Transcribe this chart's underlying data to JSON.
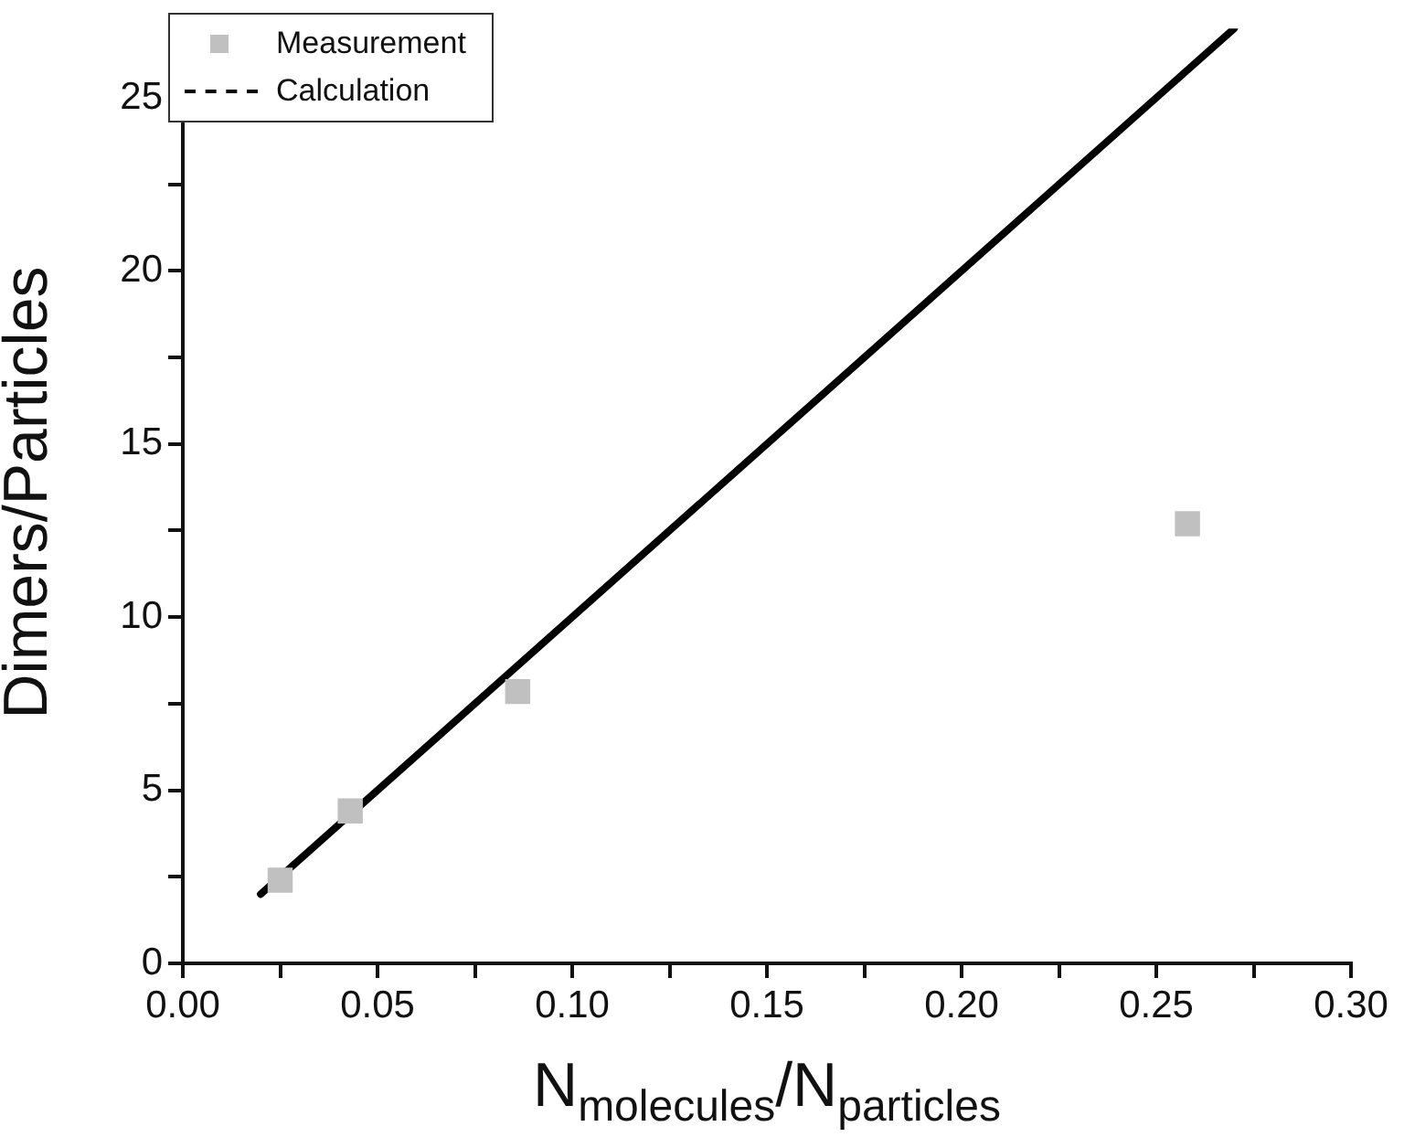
{
  "chart_data": {
    "type": "scatter",
    "xlabel": "N$_{molecules}$/N$_{particles}$",
    "ylabel": "Dimers/Particles",
    "xlim": [
      0,
      0.3
    ],
    "ylim": [
      0,
      27
    ],
    "xticks": [
      {
        "value": 0,
        "label": "0.00"
      },
      {
        "value": 0.025,
        "label": null
      },
      {
        "value": 0.05,
        "label": "0.05"
      },
      {
        "value": 0.075,
        "label": null
      },
      {
        "value": 0.1,
        "label": "0.10"
      },
      {
        "value": 0.125,
        "label": null
      },
      {
        "value": 0.15,
        "label": "0.15"
      },
      {
        "value": 0.175,
        "label": null
      },
      {
        "value": 0.2,
        "label": "0.20"
      },
      {
        "value": 0.225,
        "label": null
      },
      {
        "value": 0.25,
        "label": "0.25"
      },
      {
        "value": 0.275,
        "label": null
      },
      {
        "value": 0.3,
        "label": "0.30"
      }
    ],
    "yticks": [
      0,
      {
        "value": 2.5,
        "label": null
      },
      5,
      {
        "value": 7.5,
        "label": null
      },
      10,
      {
        "value": 12.5,
        "label": null
      },
      15,
      {
        "value": 17.5,
        "label": null
      },
      20,
      {
        "value": 22.5,
        "label": null
      },
      25
    ],
    "grid": false,
    "legend": "top left",
    "series": [
      {
        "name": "Measurement",
        "type": "scatter",
        "color": "#c0c0c0",
        "marker": "square",
        "x": [
          0.025,
          0.043,
          0.086,
          0.258
        ],
        "values": [
          2.4,
          4.4,
          7.85,
          12.7
        ]
      },
      {
        "name": "Calculation",
        "type": "line",
        "color": "#000000",
        "marker": "none",
        "line_style": "solid",
        "x": [
          0.02,
          0.27
        ],
        "values": [
          2.0,
          27
        ]
      }
    ]
  }
}
